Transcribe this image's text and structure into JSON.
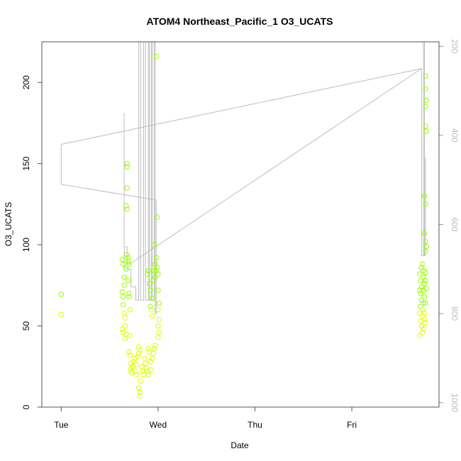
{
  "chart_data": {
    "type": "scatter",
    "title": "ATOM4 Northeast_Pacific_1 O3_UCATS",
    "xlabel": "Date",
    "ylabel": "O3_UCATS",
    "x_ticks": [
      "Tue",
      "Wed",
      "Thu",
      "Fri"
    ],
    "y_ticks": [
      0,
      50,
      100,
      150,
      200
    ],
    "ylim": [
      0,
      225
    ],
    "y2_ticks": [
      200,
      400,
      600,
      800,
      1000
    ],
    "y2lim": [
      1010,
      190
    ],
    "xlim": [
      -0.2,
      3.9
    ],
    "colors": {
      "low": "#dfff00",
      "high": "#99ff00",
      "line": "#bdbdbd",
      "text_right": "#bdbdbd"
    },
    "series": [
      {
        "kind": "points",
        "points": [
          [
            0.0,
            69.5
          ],
          [
            0.0,
            57.0
          ],
          [
            0.63,
            91
          ],
          [
            0.64,
            88
          ],
          [
            0.63,
            71
          ],
          [
            0.64,
            68
          ],
          [
            0.64,
            63
          ],
          [
            0.65,
            58
          ],
          [
            0.63,
            48
          ],
          [
            0.64,
            46
          ],
          [
            0.65,
            80
          ],
          [
            0.65,
            75
          ],
          [
            0.66,
            55
          ],
          [
            0.66,
            50
          ],
          [
            0.67,
            45
          ],
          [
            0.66,
            42
          ],
          [
            0.67,
            85
          ],
          [
            0.68,
            150
          ],
          [
            0.68,
            148
          ],
          [
            0.68,
            135
          ],
          [
            0.67,
            124
          ],
          [
            0.68,
            122
          ],
          [
            0.68,
            94
          ],
          [
            0.69,
            92
          ],
          [
            0.69,
            90
          ],
          [
            0.7,
            88
          ],
          [
            0.69,
            78
          ],
          [
            0.7,
            70
          ],
          [
            0.7,
            68
          ],
          [
            0.71,
            60
          ],
          [
            0.71,
            44
          ],
          [
            0.7,
            34
          ],
          [
            0.71,
            32
          ],
          [
            0.72,
            27
          ],
          [
            0.72,
            24
          ],
          [
            0.72,
            22
          ],
          [
            0.73,
            21
          ],
          [
            0.74,
            25
          ],
          [
            0.75,
            28
          ],
          [
            0.76,
            30
          ],
          [
            0.77,
            26
          ],
          [
            0.77,
            22
          ],
          [
            0.78,
            20
          ],
          [
            0.79,
            31
          ],
          [
            0.8,
            33
          ],
          [
            0.8,
            37
          ],
          [
            0.81,
            35
          ],
          [
            0.8,
            12
          ],
          [
            0.81,
            9
          ],
          [
            0.81,
            7
          ],
          [
            0.82,
            16
          ],
          [
            0.83,
            25
          ],
          [
            0.84,
            22
          ],
          [
            0.85,
            20
          ],
          [
            0.86,
            30
          ],
          [
            0.87,
            27
          ],
          [
            0.88,
            24
          ],
          [
            0.89,
            22
          ],
          [
            0.9,
            20
          ],
          [
            0.9,
            36
          ],
          [
            0.91,
            34
          ],
          [
            0.92,
            28
          ],
          [
            0.93,
            23
          ],
          [
            0.94,
            30
          ],
          [
            0.95,
            33
          ],
          [
            0.89,
            82
          ],
          [
            0.9,
            84
          ],
          [
            0.91,
            76
          ],
          [
            0.92,
            72
          ],
          [
            0.92,
            62
          ],
          [
            0.93,
            60
          ],
          [
            0.94,
            56
          ],
          [
            0.94,
            67
          ],
          [
            0.95,
            78
          ],
          [
            0.96,
            84
          ],
          [
            0.97,
            80
          ],
          [
            0.96,
            100
          ],
          [
            0.97,
            88
          ],
          [
            0.98,
            92
          ],
          [
            0.98,
            84
          ],
          [
            0.99,
            86
          ],
          [
            0.99,
            117
          ],
          [
            0.98,
            216
          ],
          [
            1.0,
            82
          ],
          [
            1.0,
            72
          ],
          [
            1.01,
            64
          ],
          [
            1.0,
            60
          ],
          [
            1.01,
            54
          ],
          [
            1.0,
            50
          ],
          [
            1.01,
            46
          ],
          [
            1.0,
            43
          ],
          [
            0.97,
            38
          ],
          [
            0.96,
            36
          ]
        ]
      },
      {
        "kind": "points",
        "points": [
          [
            3.7,
            82
          ],
          [
            3.71,
            78
          ],
          [
            3.72,
            74
          ],
          [
            3.7,
            72
          ],
          [
            3.71,
            70
          ],
          [
            3.72,
            66
          ],
          [
            3.71,
            62
          ],
          [
            3.7,
            58
          ],
          [
            3.71,
            53
          ],
          [
            3.72,
            50
          ],
          [
            3.73,
            46
          ],
          [
            3.7,
            44
          ],
          [
            3.72,
            86
          ],
          [
            3.73,
            88
          ],
          [
            3.74,
            84
          ],
          [
            3.74,
            80
          ],
          [
            3.75,
            76
          ],
          [
            3.74,
            72
          ],
          [
            3.75,
            68
          ],
          [
            3.76,
            64
          ],
          [
            3.74,
            60
          ],
          [
            3.73,
            56
          ],
          [
            3.75,
            54
          ],
          [
            3.76,
            52
          ],
          [
            3.74,
            48
          ],
          [
            3.76,
            83
          ],
          [
            3.76,
            78
          ],
          [
            3.77,
            73
          ],
          [
            3.76,
            204
          ],
          [
            3.76,
            196
          ],
          [
            3.77,
            189
          ],
          [
            3.76,
            185
          ],
          [
            3.76,
            173
          ],
          [
            3.77,
            170
          ],
          [
            3.75,
            130
          ],
          [
            3.76,
            125
          ],
          [
            3.75,
            107
          ],
          [
            3.76,
            102
          ],
          [
            3.77,
            99
          ],
          [
            3.76,
            96
          ],
          [
            3.74,
            64
          ],
          [
            3.75,
            58
          ]
        ]
      },
      {
        "kind": "line",
        "axis": "right",
        "points": [
          [
            0.0,
            420
          ],
          [
            0.0,
            510
          ],
          [
            0.98,
            545
          ],
          [
            0.98,
            800
          ],
          [
            0.97,
            800
          ],
          [
            0.97,
            190
          ],
          [
            0.96,
            190
          ],
          [
            0.96,
            770
          ],
          [
            0.94,
            770
          ],
          [
            0.94,
            190
          ],
          [
            0.93,
            190
          ],
          [
            0.93,
            770
          ],
          [
            0.91,
            770
          ],
          [
            0.91,
            190
          ],
          [
            0.9,
            190
          ],
          [
            0.9,
            770
          ],
          [
            0.87,
            770
          ],
          [
            0.87,
            190
          ],
          [
            0.85,
            190
          ],
          [
            0.85,
            770
          ],
          [
            0.82,
            770
          ],
          [
            0.82,
            190
          ],
          [
            0.8,
            190
          ],
          [
            0.8,
            770
          ],
          [
            0.77,
            770
          ],
          [
            0.77,
            740
          ],
          [
            0.72,
            740
          ],
          [
            0.72,
            700
          ],
          [
            0.65,
            700
          ],
          [
            0.65,
            350
          ],
          [
            0.65,
            650
          ],
          [
            0.68,
            650
          ],
          [
            0.68,
            690
          ],
          [
            0.7,
            690
          ],
          [
            3.72,
            250
          ],
          [
            3.72,
            670
          ],
          [
            3.74,
            670
          ],
          [
            3.74,
            190
          ],
          [
            3.75,
            190
          ],
          [
            3.75,
            670
          ],
          [
            3.76,
            670
          ],
          [
            3.76,
            450
          ]
        ]
      },
      {
        "kind": "line",
        "axis": "right",
        "points": [
          [
            0.0,
            420
          ],
          [
            3.72,
            250
          ]
        ]
      }
    ]
  }
}
